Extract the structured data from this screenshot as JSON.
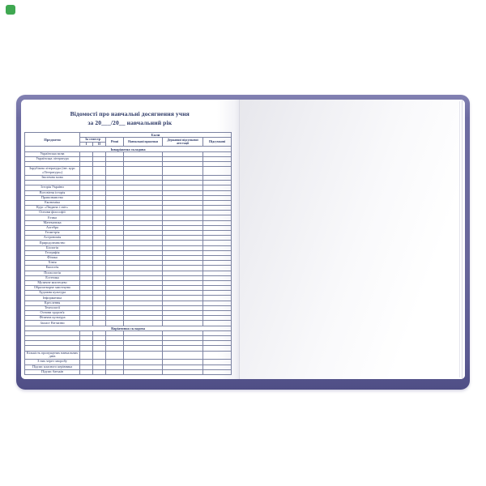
{
  "photo": {
    "swatch_color": "#3fa851"
  },
  "colors": {
    "cover_purple": "#67669a",
    "ink_navy": "#2e3a67",
    "grid_line": "#7b82a1"
  },
  "header": {
    "title_line1": "Відомості про навчальні досягнення учня",
    "title_line2": "за 20___/20__ навчальний рік"
  },
  "table": {
    "headers": {
      "subjects": "Предмети",
      "marks": "Бали",
      "semester": "За семестр",
      "sem_i": "І",
      "sem_ii": "ІІ",
      "annual": "Річні",
      "practice": "Навчальної практики",
      "state_attestation": "Державної підсумкової атестації",
      "final": "Підсумкові"
    },
    "sections": [
      {
        "title": "Інваріантна складова",
        "rows": [
          "Українська мова",
          "Українська література",
          "",
          "Зарубіжна література (інт. курс «Література»)",
          "Іноземна мова",
          "",
          "Історія України",
          "Всесвітня історія",
          "Правознавство",
          "Економіка",
          "Курс «Людина і світ»",
          "Основи філософії",
          "Етика",
          "Математика",
          "Алгебра",
          "Геометрія",
          "Астрономія",
          "Природознавство",
          "Біологія",
          "Географія",
          "Фізика",
          "Хімія",
          "Екологія",
          "Психологія",
          "Естетика",
          "Музичне мистецтво",
          "Образотворче мистецтво",
          "Художня культура",
          "Інформатика",
          "Креслення",
          "Технології",
          "Основи здоров'я",
          "Фізична культура",
          "Захист Вітчизни"
        ]
      },
      {
        "title": "Варіативна складова",
        "rows": [
          "",
          "",
          "",
          ""
        ]
      }
    ],
    "footer_rows": [
      "Кількість пропущених навчальних днів",
      "З них через хворобу",
      "Підпис класного керівника",
      "Підпис батьків"
    ]
  }
}
